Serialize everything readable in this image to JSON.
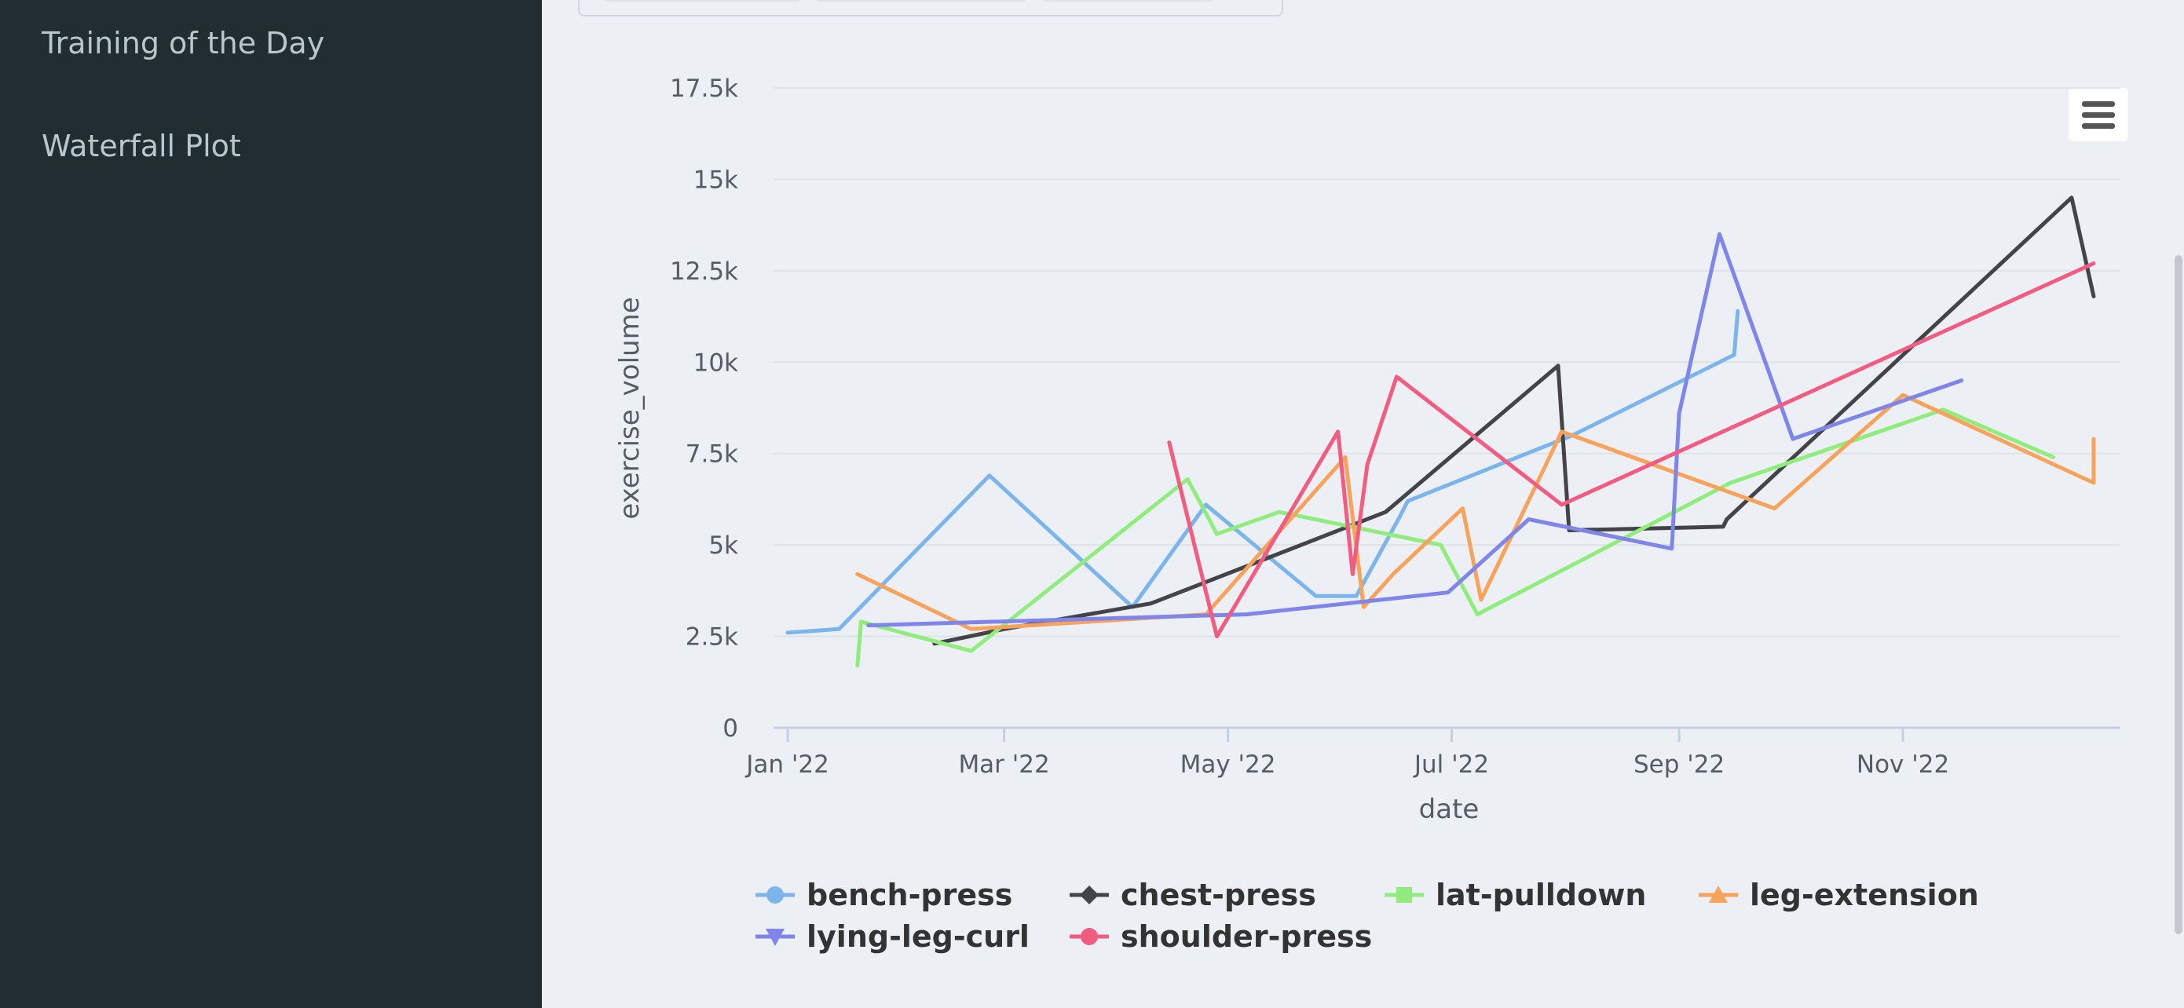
{
  "sidebar": {
    "items": [
      {
        "label": "Training of the Day"
      },
      {
        "label": "Waterfall Plot"
      }
    ]
  },
  "chart_data": {
    "type": "line",
    "title": "",
    "xlabel": "date",
    "ylabel": "exercise_volume",
    "x_type": "datetime",
    "x_range": [
      "2022-01-01",
      "2022-12-31"
    ],
    "x_ticks": [
      {
        "date": "2022-01-01",
        "label": "Jan '22"
      },
      {
        "date": "2022-03-01",
        "label": "Mar '22"
      },
      {
        "date": "2022-05-01",
        "label": "May '22"
      },
      {
        "date": "2022-07-01",
        "label": "Jul '22"
      },
      {
        "date": "2022-09-01",
        "label": "Sep '22"
      },
      {
        "date": "2022-11-01",
        "label": "Nov '22"
      }
    ],
    "ylim": [
      0,
      17500
    ],
    "y_ticks": [
      {
        "value": 0,
        "label": "0"
      },
      {
        "value": 2500,
        "label": "2.5k"
      },
      {
        "value": 5000,
        "label": "5k"
      },
      {
        "value": 7500,
        "label": "7.5k"
      },
      {
        "value": 10000,
        "label": "10k"
      },
      {
        "value": 12500,
        "label": "12.5k"
      },
      {
        "value": 15000,
        "label": "15k"
      },
      {
        "value": 17500,
        "label": "17.5k"
      }
    ],
    "grid": true,
    "legend_position": "bottom",
    "series": [
      {
        "name": "bench-press",
        "color": "#7cb5ec",
        "marker": "circle",
        "points": [
          [
            "2022-01-01",
            2600
          ],
          [
            "2022-01-15",
            2700
          ],
          [
            "2022-02-25",
            6900
          ],
          [
            "2022-04-05",
            3300
          ],
          [
            "2022-04-25",
            6100
          ],
          [
            "2022-05-25",
            3600
          ],
          [
            "2022-06-05",
            3600
          ],
          [
            "2022-06-17",
            5800
          ],
          [
            "2022-06-19",
            6200
          ],
          [
            "2022-08-03",
            8000
          ],
          [
            "2022-09-16",
            10200
          ],
          [
            "2022-09-17",
            11400
          ]
        ]
      },
      {
        "name": "chest-press",
        "color": "#434348",
        "marker": "diamond",
        "points": [
          [
            "2022-02-10",
            2300
          ],
          [
            "2022-03-01",
            2700
          ],
          [
            "2022-04-10",
            3400
          ],
          [
            "2022-06-13",
            5900
          ],
          [
            "2022-07-30",
            9900
          ],
          [
            "2022-08-02",
            5400
          ],
          [
            "2022-09-13",
            5500
          ],
          [
            "2022-09-14",
            5700
          ],
          [
            "2022-12-17",
            14500
          ],
          [
            "2022-12-23",
            11800
          ]
        ]
      },
      {
        "name": "lat-pulldown",
        "color": "#90ed7d",
        "marker": "square",
        "points": [
          [
            "2022-01-20",
            1700
          ],
          [
            "2022-01-21",
            2900
          ],
          [
            "2022-02-20",
            2100
          ],
          [
            "2022-04-20",
            6800
          ],
          [
            "2022-04-28",
            5300
          ],
          [
            "2022-05-15",
            5900
          ],
          [
            "2022-06-28",
            5000
          ],
          [
            "2022-07-08",
            3100
          ],
          [
            "2022-09-15",
            6700
          ],
          [
            "2022-11-12",
            8700
          ],
          [
            "2022-12-12",
            7400
          ]
        ]
      },
      {
        "name": "leg-extension",
        "color": "#f7a35c",
        "marker": "triangle",
        "points": [
          [
            "2022-01-20",
            4200
          ],
          [
            "2022-02-20",
            2700
          ],
          [
            "2022-04-25",
            3100
          ],
          [
            "2022-06-02",
            7400
          ],
          [
            "2022-06-07",
            3300
          ],
          [
            "2022-06-15",
            4200
          ],
          [
            "2022-07-04",
            6000
          ],
          [
            "2022-07-09",
            3500
          ],
          [
            "2022-07-31",
            8100
          ],
          [
            "2022-09-27",
            6000
          ],
          [
            "2022-11-01",
            9100
          ],
          [
            "2022-12-23",
            6700
          ],
          [
            "2022-12-23",
            7900
          ]
        ]
      },
      {
        "name": "lying-leg-curl",
        "color": "#8085e9",
        "marker": "triangle-down",
        "points": [
          [
            "2022-01-23",
            2800
          ],
          [
            "2022-05-06",
            3100
          ],
          [
            "2022-06-30",
            3700
          ],
          [
            "2022-07-22",
            5700
          ],
          [
            "2022-08-30",
            4900
          ],
          [
            "2022-09-01",
            8600
          ],
          [
            "2022-09-12",
            13500
          ],
          [
            "2022-10-02",
            7900
          ],
          [
            "2022-11-17",
            9500
          ]
        ]
      },
      {
        "name": "shoulder-press",
        "color": "#f15c80",
        "marker": "circle",
        "points": [
          [
            "2022-04-15",
            7800
          ],
          [
            "2022-04-28",
            2500
          ],
          [
            "2022-05-31",
            8100
          ],
          [
            "2022-06-04",
            4200
          ],
          [
            "2022-06-08",
            7200
          ],
          [
            "2022-06-16",
            9600
          ],
          [
            "2022-07-31",
            6100
          ],
          [
            "2022-12-23",
            12700
          ]
        ]
      }
    ]
  }
}
